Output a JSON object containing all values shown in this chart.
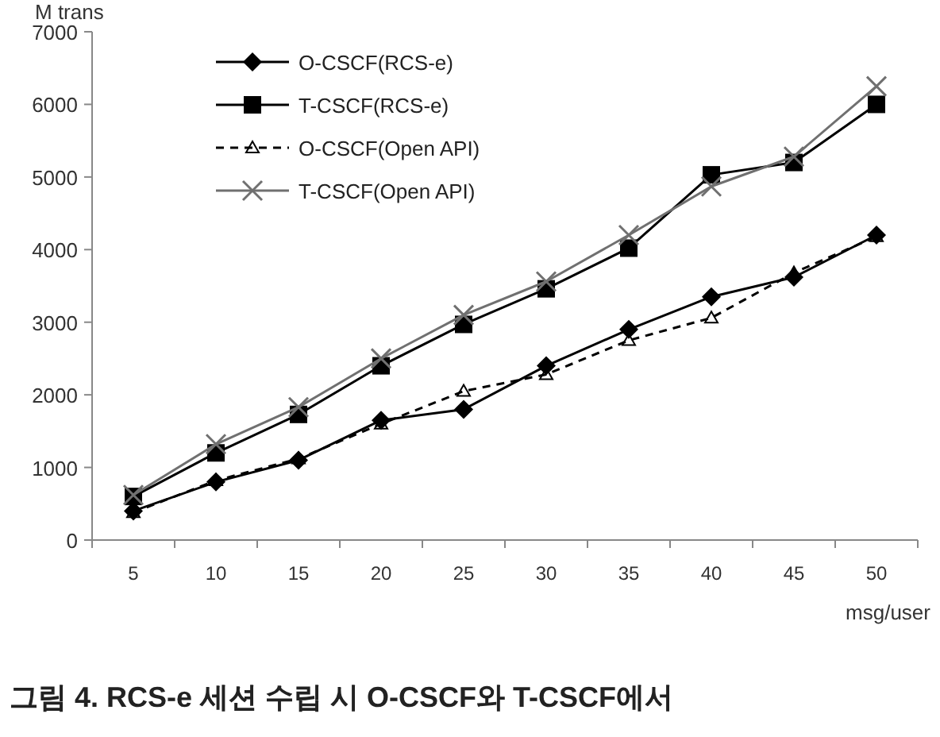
{
  "chart_data": {
    "type": "line",
    "ylabel": "M trans",
    "xlabel": "msg/user",
    "categories": [
      "5",
      "10",
      "15",
      "20",
      "25",
      "30",
      "35",
      "40",
      "45",
      "50"
    ],
    "series": [
      {
        "name": "O-CSCF(RCS-e)",
        "color": "#000000",
        "marker": "diamond",
        "line_style": "solid",
        "values": [
          400,
          800,
          1100,
          1650,
          1800,
          2400,
          2900,
          3350,
          3620,
          4200
        ]
      },
      {
        "name": "T-CSCF(RCS-e)",
        "color": "#000000",
        "marker": "square",
        "line_style": "solid",
        "values": [
          600,
          1200,
          1730,
          2400,
          2970,
          3460,
          4020,
          5030,
          5200,
          6000
        ]
      },
      {
        "name": "O-CSCF(Open API)",
        "color": "#000000",
        "marker": "triangle",
        "line_style": "dashed",
        "values": [
          380,
          820,
          1120,
          1600,
          2050,
          2280,
          2750,
          3060,
          3680,
          4180
        ]
      },
      {
        "name": "T-CSCF(Open API)",
        "color": "#707070",
        "marker": "cross",
        "line_style": "solid",
        "values": [
          620,
          1320,
          1830,
          2500,
          3100,
          3560,
          4200,
          4870,
          5280,
          6250
        ]
      }
    ],
    "ylim": [
      0,
      7000
    ],
    "yticks": [
      0,
      1000,
      2000,
      3000,
      4000,
      5000,
      6000,
      7000
    ],
    "grid": false,
    "legend": "top left",
    "annotations": [
      "그림 4. RCS-e 세션 수립 시 O-CSCF와 T-CSCF에서"
    ]
  }
}
